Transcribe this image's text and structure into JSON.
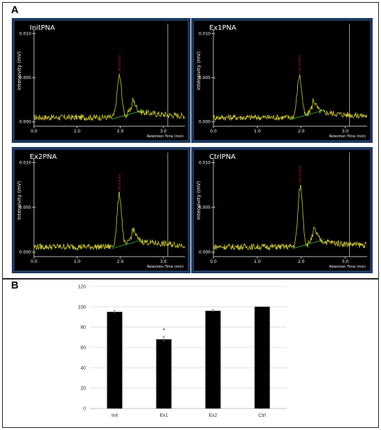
{
  "figure": {
    "panel_a_label": "A",
    "panel_b_label": "B"
  },
  "chart_data": [
    {
      "type": "line",
      "title": "InitPNA",
      "ylabel": "Intensivity (mV)",
      "xlabel": "Retention Time (min)",
      "y_ticks": [
        "0.000",
        "0.005",
        "0.010"
      ],
      "x_ticks": [
        "0.0",
        "1.0",
        "2.0",
        "3.0"
      ],
      "xlim": [
        0,
        3.5
      ],
      "ylim": [
        -0.0005,
        0.0105
      ],
      "peak": {
        "x": 1.98,
        "y": 0.0052,
        "label": "1.98 (0.0052)"
      },
      "baseline": 0.0005,
      "marker_x": 3.1,
      "line_color": "#d4cf3a"
    },
    {
      "type": "line",
      "title": "Ex1PNA",
      "ylabel": "Intensivity (mV)",
      "xlabel": "Retention Time (min)",
      "y_ticks": [
        "0.000",
        "0.005",
        "0.010"
      ],
      "x_ticks": [
        "0.0",
        "1.0",
        "2.0",
        "3.0"
      ],
      "xlim": [
        0,
        3.5
      ],
      "ylim": [
        -0.0005,
        0.0105
      ],
      "peak": {
        "x": 1.96,
        "y": 0.0052,
        "label": "1.96 (0.0052)"
      },
      "baseline": 0.0005,
      "marker_x": 3.1,
      "line_color": "#d4cf3a"
    },
    {
      "type": "line",
      "title": "Ex2PNA",
      "ylabel": "Intensivity (mV)",
      "xlabel": "Retention Time (min)",
      "y_ticks": [
        "0.000",
        "0.005",
        "0.010"
      ],
      "x_ticks": [
        "0.0",
        "1.0",
        "2.0",
        "3.0"
      ],
      "xlim": [
        0,
        3.5
      ],
      "ylim": [
        -0.0005,
        0.0105
      ],
      "peak": {
        "x": 1.98,
        "y": 0.0064,
        "label": "1.98 (0.0064)"
      },
      "baseline": 0.0006,
      "marker_x": 3.1,
      "line_color": "#d4cf3a"
    },
    {
      "type": "line",
      "title": "CtrlPNA",
      "ylabel": "Intensivity (mV)",
      "xlabel": "Retention Time (min)",
      "y_ticks": [
        "0.000",
        "0.005",
        "0.010"
      ],
      "x_ticks": [
        "0.0",
        "1.0",
        "2.0",
        "3.0"
      ],
      "xlim": [
        0,
        3.5
      ],
      "ylim": [
        -0.0005,
        0.0105
      ],
      "peak": {
        "x": 1.98,
        "y": 0.0074,
        "label": "1.98 (0.0074)"
      },
      "baseline": 0.0006,
      "marker_x": 3.1,
      "line_color": "#d4cf3a"
    },
    {
      "type": "bar",
      "categories": [
        "Init",
        "Ex1",
        "Ex2",
        "Ctrl"
      ],
      "values": [
        95,
        68,
        96,
        100
      ],
      "errors": [
        1.5,
        2.5,
        1.2,
        0
      ],
      "annotations": [
        "",
        "*",
        "",
        ""
      ],
      "ylim": [
        0,
        120
      ],
      "y_ticks": [
        0,
        20,
        40,
        60,
        80,
        100,
        120
      ],
      "grid": true,
      "bar_color": "#000000"
    }
  ]
}
